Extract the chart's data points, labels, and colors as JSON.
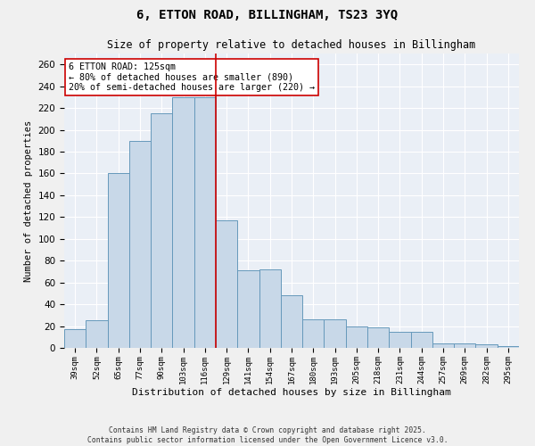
{
  "title": "6, ETTON ROAD, BILLINGHAM, TS23 3YQ",
  "subtitle": "Size of property relative to detached houses in Billingham",
  "xlabel": "Distribution of detached houses by size in Billingham",
  "ylabel": "Number of detached properties",
  "categories": [
    "39sqm",
    "52sqm",
    "65sqm",
    "77sqm",
    "90sqm",
    "103sqm",
    "116sqm",
    "129sqm",
    "141sqm",
    "154sqm",
    "167sqm",
    "180sqm",
    "193sqm",
    "205sqm",
    "218sqm",
    "231sqm",
    "244sqm",
    "257sqm",
    "269sqm",
    "282sqm",
    "295sqm"
  ],
  "values": [
    17,
    25,
    160,
    190,
    215,
    230,
    230,
    117,
    71,
    72,
    48,
    26,
    26,
    20,
    19,
    15,
    15,
    4,
    4,
    3,
    2
  ],
  "bar_color": "#c8d8e8",
  "bar_edge_color": "#6699bb",
  "vline_color": "#cc0000",
  "annotation_text": "6 ETTON ROAD: 125sqm\n← 80% of detached houses are smaller (890)\n20% of semi-detached houses are larger (220) →",
  "ylim": [
    0,
    270
  ],
  "yticks": [
    0,
    20,
    40,
    60,
    80,
    100,
    120,
    140,
    160,
    180,
    200,
    220,
    240,
    260
  ],
  "background_color": "#eaeff6",
  "fig_background": "#f0f0f0",
  "footer_line1": "Contains HM Land Registry data © Crown copyright and database right 2025.",
  "footer_line2": "Contains public sector information licensed under the Open Government Licence v3.0."
}
